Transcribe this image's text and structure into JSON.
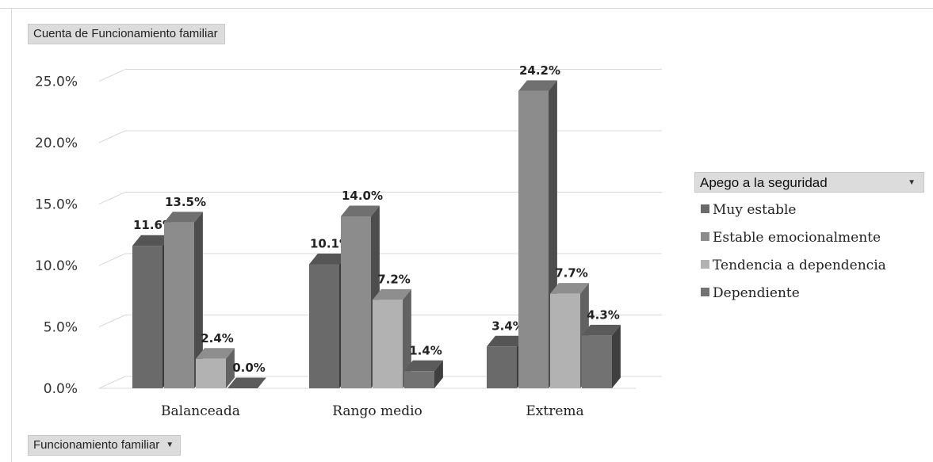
{
  "value_field": {
    "label": "Cuenta de Funcionamiento familiar"
  },
  "axis_field": {
    "label": "Funcionamiento familiar",
    "icon": "dropdown-arrow-icon"
  },
  "legend_field": {
    "label": "Apego a la seguridad",
    "icon": "dropdown-arrow-icon"
  },
  "colors": {
    "series": [
      "#6a6a6a",
      "#8c8c8c",
      "#b2b2b2",
      "#727272"
    ],
    "grid": "#d9d9d9"
  },
  "chart_data": {
    "type": "bar",
    "style": "3d-clustered-column",
    "title": "",
    "categories": [
      "Balanceada",
      "Rango medio",
      "Extrema"
    ],
    "series": [
      {
        "name": "Muy estable",
        "values": [
          11.6,
          10.1,
          3.4
        ],
        "labels": [
          "11.6%",
          "10.1%",
          "3.4%"
        ]
      },
      {
        "name": "Estable emocionalmente",
        "values": [
          13.5,
          14.0,
          24.2
        ],
        "labels": [
          "13.5%",
          "14.0%",
          "24.2%"
        ]
      },
      {
        "name": "Tendencia a dependencia",
        "values": [
          2.4,
          7.2,
          7.7
        ],
        "labels": [
          "2.4%",
          "7.2%",
          "7.7%"
        ]
      },
      {
        "name": "Dependiente",
        "values": [
          0.0,
          1.4,
          4.3
        ],
        "labels": [
          "0.0%",
          "1.4%",
          "4.3%"
        ]
      }
    ],
    "yticks": [
      0,
      5,
      10,
      15,
      20,
      25
    ],
    "ytick_labels": [
      "0.0%",
      "5.0%",
      "10.0%",
      "15.0%",
      "20.0%",
      "25.0%"
    ],
    "ylim": [
      0,
      25
    ],
    "xlabel": "",
    "ylabel": "",
    "grid": true,
    "legend_position": "right"
  }
}
